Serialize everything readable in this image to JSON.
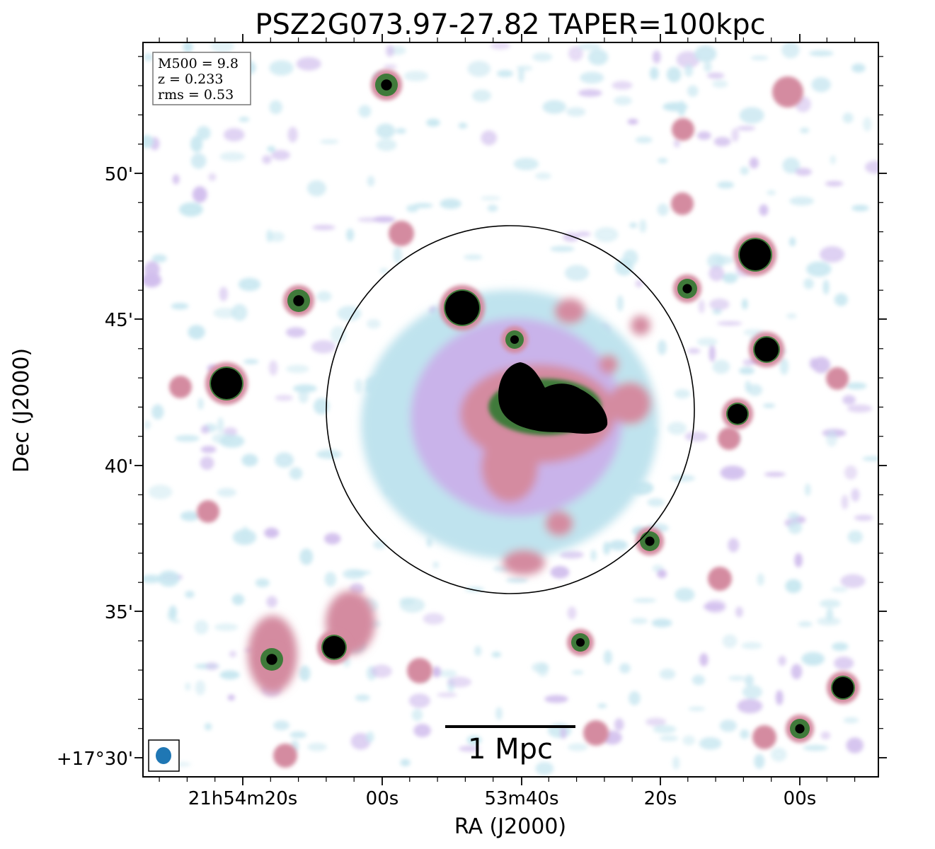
{
  "title": "PSZ2G073.97-27.82 TAPER=100kpc",
  "info_box": {
    "lines": [
      "M500 = 9.8",
      "z = 0.233",
      "rms = 0.53"
    ]
  },
  "x_axis": {
    "label": "RA (J2000)",
    "ticks": [
      "21h54m20s",
      "00s",
      "53m40s",
      "20s",
      "00s"
    ]
  },
  "y_axis": {
    "label": "Dec (J2000)",
    "ticks": [
      "50'",
      "45'",
      "40'",
      "35'",
      "+17°30'"
    ]
  },
  "scale_bar": {
    "label": "1 Mpc"
  },
  "beam_color": "#1f77b4",
  "colors": {
    "faint": "#bfe3ee",
    "lavender": "#c9b3ea",
    "pink": "#d48ba0",
    "green": "#3f7a3a",
    "black": "#000000"
  }
}
